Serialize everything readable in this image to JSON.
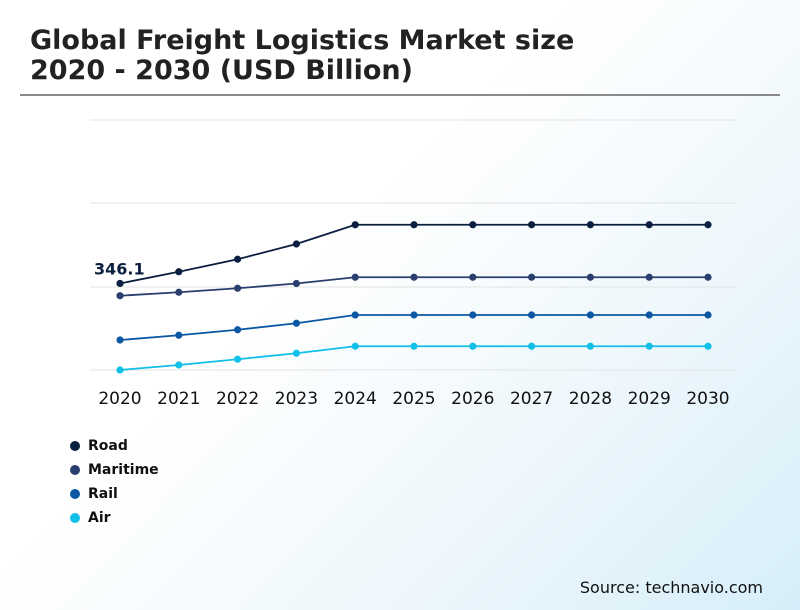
{
  "header": {
    "title_line1": "Global Freight Logistics Market size",
    "title_line2": "2020 - 2030 (USD Billion)"
  },
  "source": "Source: technavio.com",
  "chart_data": {
    "type": "line",
    "title": "Global Freight Logistics Market size 2020 - 2030 (USD Billion)",
    "xlabel": "",
    "ylabel": "",
    "x": [
      "2020",
      "2021",
      "2022",
      "2023",
      "2024",
      "2025",
      "2026",
      "2027",
      "2028",
      "2029",
      "2030"
    ],
    "ylim": [
      0,
      1000
    ],
    "grid": true,
    "legend_position": "bottom-left",
    "annotations": [
      {
        "series": "Road",
        "x": "2020",
        "label": "346.1"
      }
    ],
    "series": [
      {
        "name": "Road",
        "color": "#0a1e3f",
        "values": [
          346.1,
          393,
          443,
          504,
          581,
          581,
          581,
          581,
          581,
          581,
          581
        ]
      },
      {
        "name": "Maritime",
        "color": "#2b3f6e",
        "values": [
          297,
          311,
          327,
          346,
          371,
          371,
          371,
          371,
          371,
          371,
          371
        ]
      },
      {
        "name": "Rail",
        "color": "#0c57a4",
        "values": [
          120,
          139,
          161,
          187,
          220,
          220,
          220,
          220,
          220,
          220,
          220
        ]
      },
      {
        "name": "Air",
        "color": "#11c0e8",
        "values": [
          0,
          20,
          43,
          67,
          95,
          95,
          95,
          95,
          95,
          95,
          95
        ]
      }
    ]
  }
}
